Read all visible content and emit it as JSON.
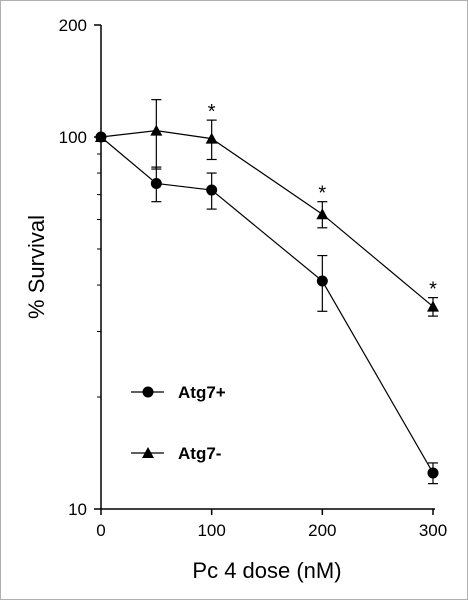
{
  "chart_data": {
    "type": "line",
    "xlabel": "Pc 4 dose (nM)",
    "ylabel": "% Survival",
    "x_scale": "linear",
    "y_scale": "log",
    "xlim": [
      0,
      300
    ],
    "ylim": [
      10,
      200
    ],
    "x_ticks": [
      0,
      100,
      200,
      300
    ],
    "y_ticks": [
      10,
      100,
      200
    ],
    "x_tick_labels": [
      "0",
      "100",
      "200",
      "300"
    ],
    "y_tick_labels": [
      "10",
      "100",
      "200"
    ],
    "grid": false,
    "legend_placement": "lower-left",
    "series": [
      {
        "name": "Atg7+",
        "marker": "circle",
        "x": [
          0,
          50,
          100,
          200,
          300
        ],
        "y": [
          100,
          75,
          72,
          41,
          12.5
        ],
        "error": [
          0,
          8,
          8,
          7,
          0.8
        ]
      },
      {
        "name": "Atg7-",
        "marker": "triangle",
        "x": [
          0,
          50,
          100,
          200,
          300
        ],
        "y": [
          100,
          104,
          99,
          62,
          35
        ],
        "error": [
          0,
          22,
          12,
          5,
          2
        ]
      }
    ],
    "annotations": [
      {
        "text": "*",
        "x": 100,
        "series": 1
      },
      {
        "text": "*",
        "x": 200,
        "series": 1
      },
      {
        "text": "*",
        "x": 300,
        "series": 1
      }
    ]
  }
}
